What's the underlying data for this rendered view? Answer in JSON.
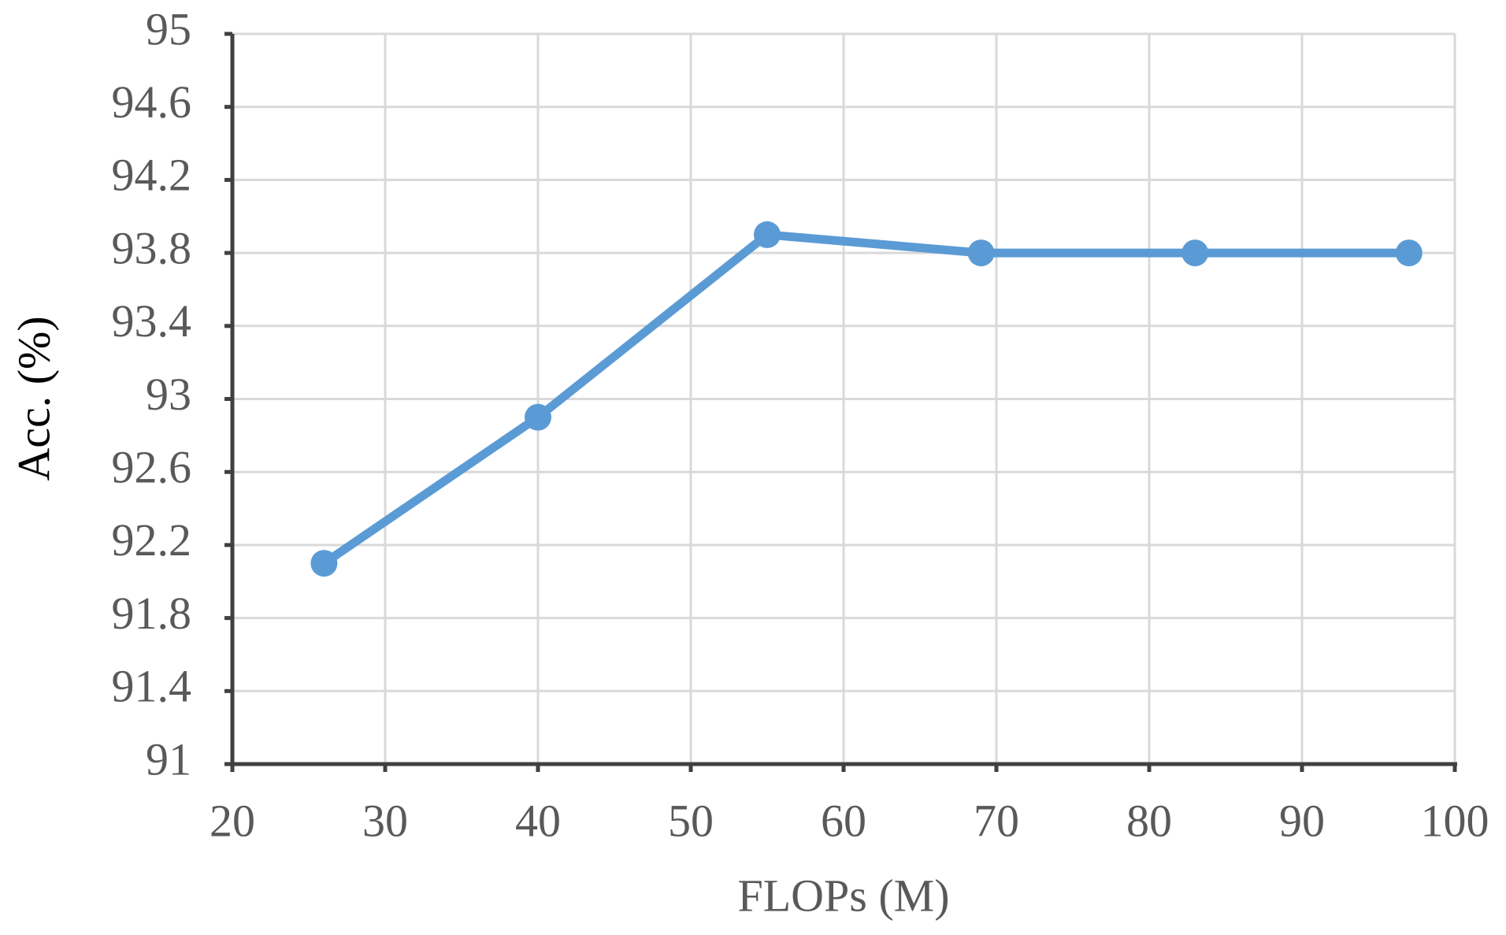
{
  "chart_data": {
    "type": "line",
    "xlabel": "FLOPs (M)",
    "ylabel": "Acc. (%)",
    "x": [
      26,
      40,
      55,
      69,
      83,
      97
    ],
    "series": [
      {
        "name": "Acc.",
        "color": "#5b9bd5",
        "values": [
          92.1,
          92.9,
          93.9,
          93.8,
          93.8,
          93.8
        ]
      }
    ],
    "xlim": [
      20,
      100
    ],
    "xticks": [
      20,
      30,
      40,
      50,
      60,
      70,
      80,
      90,
      100
    ],
    "ylim": [
      91,
      95
    ],
    "yticks": [
      91,
      91.4,
      91.8,
      92.2,
      92.6,
      93,
      93.4,
      93.8,
      94.2,
      94.6,
      95
    ],
    "grid": true
  }
}
